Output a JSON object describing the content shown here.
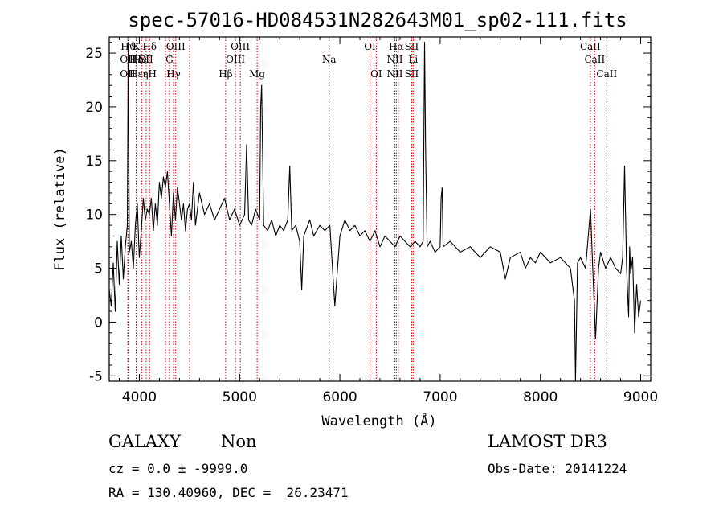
{
  "chart_data": {
    "type": "line",
    "title": "spec-57016-HD084531N282643M01_sp02-111.fits",
    "xlabel": "Wavelength (Å)",
    "ylabel": "Flux (relative)",
    "xlim": [
      3700,
      9100
    ],
    "ylim": [
      -5.5,
      26.5
    ],
    "xticks": [
      4000,
      5000,
      6000,
      7000,
      8000,
      9000
    ],
    "yticks": [
      -5,
      0,
      5,
      10,
      15,
      20,
      25
    ],
    "grid": false,
    "series": [
      {
        "points": [
          [
            3700,
            3.0
          ],
          [
            3720,
            1.5
          ],
          [
            3740,
            5.5
          ],
          [
            3760,
            1.0
          ],
          [
            3780,
            7.5
          ],
          [
            3800,
            3.5
          ],
          [
            3820,
            8.0
          ],
          [
            3840,
            4.0
          ],
          [
            3860,
            7.0
          ],
          [
            3880,
            9.0
          ],
          [
            3890,
            26.0
          ],
          [
            3900,
            6.5
          ],
          [
            3920,
            7.5
          ],
          [
            3940,
            5.0
          ],
          [
            3960,
            9.0
          ],
          [
            3980,
            11.0
          ],
          [
            4000,
            6.0
          ],
          [
            4020,
            8.5
          ],
          [
            4040,
            11.5
          ],
          [
            4060,
            9.5
          ],
          [
            4080,
            10.5
          ],
          [
            4100,
            10.0
          ],
          [
            4120,
            11.5
          ],
          [
            4140,
            8.5
          ],
          [
            4160,
            11.0
          ],
          [
            4180,
            9.0
          ],
          [
            4200,
            13.0
          ],
          [
            4220,
            11.5
          ],
          [
            4240,
            13.5
          ],
          [
            4260,
            12.5
          ],
          [
            4280,
            14.0
          ],
          [
            4300,
            11.0
          ],
          [
            4320,
            8.0
          ],
          [
            4340,
            12.0
          ],
          [
            4360,
            9.5
          ],
          [
            4380,
            12.5
          ],
          [
            4400,
            11.0
          ],
          [
            4420,
            9.5
          ],
          [
            4440,
            11.0
          ],
          [
            4460,
            8.5
          ],
          [
            4480,
            10.5
          ],
          [
            4500,
            11.0
          ],
          [
            4520,
            9.5
          ],
          [
            4540,
            13.0
          ],
          [
            4560,
            9.0
          ],
          [
            4580,
            10.5
          ],
          [
            4600,
            12.0
          ],
          [
            4650,
            10.0
          ],
          [
            4700,
            11.0
          ],
          [
            4750,
            9.5
          ],
          [
            4800,
            10.5
          ],
          [
            4850,
            11.5
          ],
          [
            4900,
            9.5
          ],
          [
            4950,
            10.5
          ],
          [
            5000,
            9.0
          ],
          [
            5050,
            10.0
          ],
          [
            5070,
            16.5
          ],
          [
            5090,
            9.5
          ],
          [
            5120,
            9.0
          ],
          [
            5160,
            10.5
          ],
          [
            5200,
            9.5
          ],
          [
            5210,
            20.0
          ],
          [
            5220,
            22.0
          ],
          [
            5240,
            9.0
          ],
          [
            5280,
            8.5
          ],
          [
            5320,
            9.5
          ],
          [
            5360,
            8.0
          ],
          [
            5400,
            9.0
          ],
          [
            5440,
            8.5
          ],
          [
            5480,
            9.5
          ],
          [
            5500,
            14.5
          ],
          [
            5520,
            8.5
          ],
          [
            5560,
            9.0
          ],
          [
            5600,
            7.5
          ],
          [
            5620,
            3.0
          ],
          [
            5640,
            8.0
          ],
          [
            5700,
            9.5
          ],
          [
            5740,
            8.0
          ],
          [
            5800,
            9.0
          ],
          [
            5850,
            8.5
          ],
          [
            5900,
            9.0
          ],
          [
            5950,
            1.5
          ],
          [
            6000,
            8.0
          ],
          [
            6050,
            9.5
          ],
          [
            6100,
            8.5
          ],
          [
            6150,
            9.0
          ],
          [
            6200,
            8.0
          ],
          [
            6250,
            8.5
          ],
          [
            6300,
            7.5
          ],
          [
            6350,
            8.5
          ],
          [
            6400,
            7.0
          ],
          [
            6450,
            8.0
          ],
          [
            6500,
            7.5
          ],
          [
            6550,
            7.0
          ],
          [
            6600,
            8.0
          ],
          [
            6650,
            7.5
          ],
          [
            6700,
            7.0
          ],
          [
            6750,
            7.5
          ],
          [
            6800,
            7.0
          ],
          [
            6830,
            7.5
          ],
          [
            6845,
            26.0
          ],
          [
            6855,
            16.0
          ],
          [
            6870,
            7.0
          ],
          [
            6900,
            7.5
          ],
          [
            6950,
            6.5
          ],
          [
            7000,
            7.0
          ],
          [
            7010,
            11.5
          ],
          [
            7020,
            12.5
          ],
          [
            7030,
            7.0
          ],
          [
            7100,
            7.5
          ],
          [
            7200,
            6.5
          ],
          [
            7300,
            7.0
          ],
          [
            7400,
            6.0
          ],
          [
            7500,
            7.0
          ],
          [
            7600,
            6.5
          ],
          [
            7650,
            4.0
          ],
          [
            7700,
            6.0
          ],
          [
            7800,
            6.5
          ],
          [
            7850,
            5.0
          ],
          [
            7900,
            6.0
          ],
          [
            7950,
            5.5
          ],
          [
            8000,
            6.5
          ],
          [
            8100,
            5.5
          ],
          [
            8200,
            6.0
          ],
          [
            8300,
            5.0
          ],
          [
            8340,
            2.0
          ],
          [
            8350,
            -5.5
          ],
          [
            8370,
            5.5
          ],
          [
            8400,
            6.0
          ],
          [
            8450,
            5.0
          ],
          [
            8500,
            10.5
          ],
          [
            8520,
            5.5
          ],
          [
            8550,
            -1.5
          ],
          [
            8580,
            5.0
          ],
          [
            8600,
            6.5
          ],
          [
            8650,
            5.0
          ],
          [
            8700,
            6.0
          ],
          [
            8750,
            5.0
          ],
          [
            8800,
            4.5
          ],
          [
            8820,
            6.0
          ],
          [
            8840,
            14.5
          ],
          [
            8860,
            5.0
          ],
          [
            8880,
            0.5
          ],
          [
            8890,
            7.0
          ],
          [
            8900,
            4.5
          ],
          [
            8920,
            6.0
          ],
          [
            8940,
            -1.0
          ],
          [
            8960,
            3.5
          ],
          [
            8980,
            0.5
          ],
          [
            9000,
            2.0
          ]
        ]
      }
    ],
    "lines": [
      {
        "x": 3885,
        "labels": [
          {
            "row": 1,
            "text": "OII"
          },
          {
            "row": 2,
            "text": "OII"
          }
        ]
      },
      {
        "x": 3890,
        "labels": [
          {
            "row": 0,
            "text": "Hϑ"
          }
        ]
      },
      {
        "x": 3968,
        "labels": [
          {
            "row": 1,
            "text": "Hε"
          },
          {
            "row": 2,
            "text": "Hε"
          }
        ]
      },
      {
        "x": 3970,
        "labels": [
          {
            "row": 0,
            "text": "K"
          }
        ]
      },
      {
        "x": 4026,
        "labels": [
          {
            "row": 1,
            "text": "HeI"
          }
        ]
      },
      {
        "x": 4068,
        "labels": [
          {
            "row": 1,
            "text": "SII"
          }
        ]
      },
      {
        "x": 4102,
        "labels": [
          {
            "row": 0,
            "text": "Hδ"
          },
          {
            "row": 2,
            "text": "ηH"
          }
        ]
      },
      {
        "x": 4261,
        "labels": []
      },
      {
        "x": 4300,
        "labels": [
          {
            "row": 1,
            "text": "G"
          }
        ]
      },
      {
        "x": 4341,
        "labels": [
          {
            "row": 2,
            "text": "Hγ"
          }
        ]
      },
      {
        "x": 4363,
        "labels": [
          {
            "row": 0,
            "text": "OIII"
          }
        ]
      },
      {
        "x": 4501,
        "labels": []
      },
      {
        "x": 4861,
        "labels": [
          {
            "row": 2,
            "text": "Hβ"
          }
        ]
      },
      {
        "x": 4959,
        "labels": [
          {
            "row": 1,
            "text": "OIII"
          }
        ]
      },
      {
        "x": 5007,
        "labels": [
          {
            "row": 0,
            "text": "OIII"
          }
        ]
      },
      {
        "x": 5175,
        "labels": [
          {
            "row": 2,
            "text": "Mg"
          }
        ]
      },
      {
        "x": 5893,
        "labels": [
          {
            "row": 1,
            "text": "Na"
          }
        ]
      },
      {
        "x": 6300,
        "labels": [
          {
            "row": 0,
            "text": "OI"
          }
        ]
      },
      {
        "x": 6363,
        "labels": [
          {
            "row": 2,
            "text": "OI"
          }
        ]
      },
      {
        "x": 6548,
        "labels": [
          {
            "row": 1,
            "text": "NII"
          },
          {
            "row": 2,
            "text": "NII"
          }
        ]
      },
      {
        "x": 6563,
        "labels": [
          {
            "row": 0,
            "text": "Hα"
          }
        ]
      },
      {
        "x": 6583,
        "labels": []
      },
      {
        "x": 6716,
        "labels": [
          {
            "row": 0,
            "text": "SII"
          },
          {
            "row": 2,
            "text": "SII"
          }
        ]
      },
      {
        "x": 6731,
        "labels": [
          {
            "row": 1,
            "text": "Li"
          }
        ]
      },
      {
        "x": 8498,
        "labels": [
          {
            "row": 0,
            "text": "CaII"
          }
        ]
      },
      {
        "x": 8542,
        "labels": [
          {
            "row": 1,
            "text": "CaII"
          }
        ]
      },
      {
        "x": 8662,
        "labels": [
          {
            "row": 2,
            "text": "CaII"
          }
        ]
      }
    ],
    "line_color": "#c00000"
  },
  "info": {
    "object_class": "GALAXY",
    "subclass": "Non",
    "cz": "cz = 0.0 ± -9999.0",
    "coords": "RA = 130.40960, DEC =  26.23471",
    "survey": "LAMOST DR3",
    "obs_date": "Obs-Date: 20141224"
  }
}
